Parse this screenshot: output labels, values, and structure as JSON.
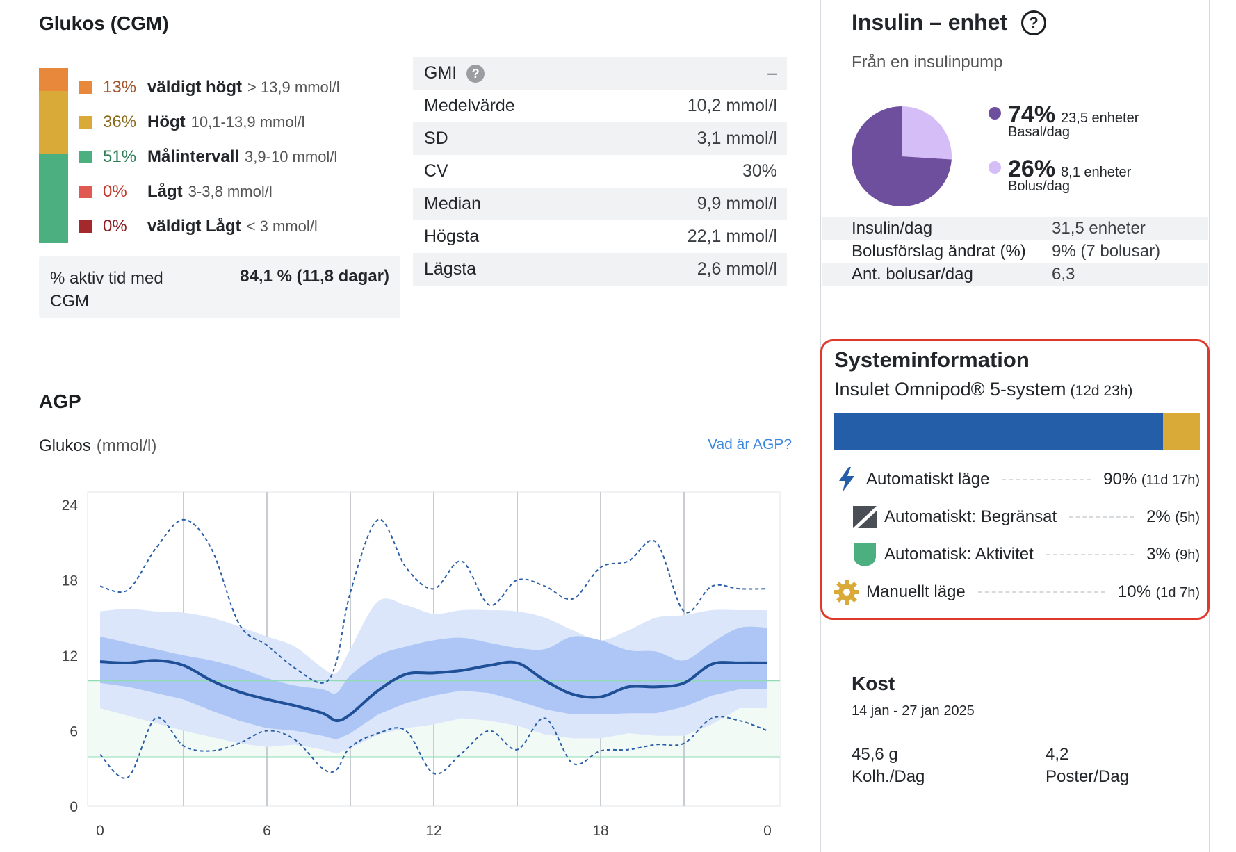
{
  "glucose": {
    "title": "Glukos (CGM)",
    "tir": [
      {
        "pct": "13%",
        "label": "väldigt högt",
        "range": "> 13,9 mmol/l",
        "color": "#e8883a",
        "text_color": "#a0552a",
        "share": 13
      },
      {
        "pct": "36%",
        "label": "Högt",
        "range": "10,1-13,9 mmol/l",
        "color": "#d9aa37",
        "text_color": "#8a6a1a",
        "share": 36
      },
      {
        "pct": "51%",
        "label": "Målintervall",
        "range": "3,9-10 mmol/l",
        "color": "#4caf7f",
        "text_color": "#2e7d55",
        "share": 51
      },
      {
        "pct": "0%",
        "label": "Lågt",
        "range": "3-3,8 mmol/l",
        "color": "#e05a52",
        "text_color": "#c0392b",
        "share": 0
      },
      {
        "pct": "0%",
        "label": "väldigt Lågt",
        "range": "< 3 mmol/l",
        "color": "#a3292c",
        "text_color": "#8b1c1f",
        "share": 0
      }
    ],
    "cgm_active_label": "% aktiv tid med CGM",
    "cgm_active_value": "84,1 % (11,8 dagar)",
    "stats": [
      {
        "label": "GMI",
        "value": "–",
        "help": "?"
      },
      {
        "label": "Medelvärde",
        "value": "10,2 mmol/l"
      },
      {
        "label": "SD",
        "value": "3,1 mmol/l"
      },
      {
        "label": "CV",
        "value": "30%"
      },
      {
        "label": "Median",
        "value": "9,9 mmol/l"
      },
      {
        "label": "Högsta",
        "value": "22,1 mmol/l"
      },
      {
        "label": "Lägsta",
        "value": "2,6 mmol/l"
      }
    ]
  },
  "agp": {
    "title": "AGP",
    "ylabel": "Glukos",
    "unit": "(mmol/l)",
    "help_link": "Vad är AGP?"
  },
  "chart_data": {
    "type": "area",
    "ylabel": "Glukos (mmol/l)",
    "x_ticks": [
      "0",
      "6",
      "12",
      "18",
      "0"
    ],
    "y_ticks": [
      "0",
      "6",
      "12",
      "18",
      "24"
    ],
    "ylim": [
      0,
      25
    ],
    "xlim": [
      0,
      24
    ],
    "target_range": [
      3.9,
      10
    ],
    "hours": [
      0,
      1,
      2,
      3,
      4,
      5,
      6,
      7,
      8,
      8.5,
      9,
      10,
      11,
      12,
      13,
      14,
      15,
      16,
      17,
      18,
      19,
      20,
      21,
      22,
      23,
      24
    ],
    "series": [
      {
        "name": "p95",
        "style": "dashed",
        "values": [
          17.5,
          17.2,
          20.5,
          22.8,
          20.5,
          14.5,
          12.8,
          11.0,
          9.8,
          11.5,
          17.0,
          22.8,
          19.0,
          17.3,
          19.5,
          16.0,
          18.0,
          17.5,
          16.5,
          19.0,
          19.5,
          21.0,
          15.5,
          17.5,
          17.3,
          17.3
        ],
        "values_end": [
          17.0
        ]
      },
      {
        "name": "p90",
        "style": "band-outer-top",
        "values": [
          15.5,
          15.7,
          15.5,
          15.4,
          15.0,
          14.3,
          13.5,
          12.7,
          11.0,
          10.6,
          12.5,
          16.3,
          16.0,
          15.3,
          15.6,
          15.6,
          15.5,
          15.0,
          14.0,
          13.2,
          14.0,
          15.0,
          15.2,
          15.6,
          15.6,
          15.6
        ]
      },
      {
        "name": "p75",
        "style": "band-inner-top",
        "values": [
          13.5,
          13.0,
          12.5,
          12.0,
          11.6,
          11.0,
          10.2,
          9.6,
          9.3,
          9.0,
          10.4,
          12.0,
          12.7,
          13.2,
          13.4,
          13.0,
          12.6,
          12.5,
          13.5,
          13.2,
          12.4,
          12.3,
          11.6,
          13.0,
          14.2,
          14.2
        ]
      },
      {
        "name": "Median",
        "style": "solid",
        "values": [
          11.5,
          11.4,
          11.6,
          11.2,
          10.0,
          9.1,
          8.5,
          8.0,
          7.4,
          6.8,
          7.3,
          9.2,
          10.5,
          10.6,
          10.8,
          11.2,
          11.4,
          10.0,
          8.9,
          8.7,
          9.5,
          9.5,
          9.8,
          11.3,
          11.4,
          11.4
        ]
      },
      {
        "name": "p25",
        "style": "band-inner-bottom",
        "values": [
          9.8,
          9.5,
          9.0,
          8.5,
          7.6,
          6.8,
          6.2,
          6.0,
          5.6,
          5.3,
          5.8,
          7.3,
          8.2,
          8.8,
          9.2,
          9.0,
          8.4,
          7.7,
          7.3,
          7.3,
          7.4,
          7.4,
          7.9,
          8.8,
          9.3,
          9.3
        ]
      },
      {
        "name": "p10",
        "style": "band-outer-bottom",
        "values": [
          7.8,
          7.2,
          6.6,
          6.0,
          5.5,
          5.0,
          4.7,
          4.9,
          4.5,
          4.2,
          4.6,
          5.7,
          6.2,
          6.5,
          7.0,
          6.8,
          6.4,
          5.7,
          5.4,
          5.4,
          5.8,
          5.6,
          5.6,
          6.5,
          7.8,
          7.8
        ]
      },
      {
        "name": "p5",
        "style": "dashed",
        "values": [
          4.1,
          2.3,
          7.0,
          4.8,
          4.4,
          5.0,
          6.0,
          5.3,
          3.0,
          2.9,
          4.7,
          5.8,
          6.0,
          2.6,
          4.2,
          6.0,
          4.5,
          7.0,
          3.4,
          4.4,
          4.5,
          4.9,
          5.0,
          7.0,
          6.8,
          6.0
        ]
      }
    ]
  },
  "insulin": {
    "title": "Insulin – enhet",
    "help": "?",
    "subtitle": "Från en insulinpump",
    "basal": {
      "pct": "74%",
      "units": "23,5 enheter",
      "label": "Basal/dag",
      "share": 74,
      "color": "#6e4f9e"
    },
    "bolus": {
      "pct": "26%",
      "units": "8,1 enheter",
      "label": "Bolus/dag",
      "share": 26,
      "color": "#d5bdf7"
    },
    "rows": [
      {
        "label": "Insulin/dag",
        "value": "31,5 enheter"
      },
      {
        "label": "Bolusförslag ändrat (%)",
        "value": "9% (7 bolusar)"
      },
      {
        "label": "Ant. bolusar/dag",
        "value": "6,3"
      }
    ]
  },
  "system": {
    "title": "Systeminformation",
    "device": "Insulet Omnipod® 5-system",
    "duration": "(12d 23h)",
    "bar": [
      {
        "share": 90,
        "color": "#245ea8"
      },
      {
        "share": 10,
        "color": "#d9aa37"
      }
    ],
    "modes": [
      {
        "icon": "lightning-icon",
        "label": "Automatiskt läge",
        "pct": "90%",
        "time": "(11d 17h)",
        "indent": false
      },
      {
        "icon": "limited-icon",
        "label": "Automatiskt: Begränsat",
        "pct": "2%",
        "time": "(5h)",
        "indent": true
      },
      {
        "icon": "shield-icon",
        "label": "Automatisk: Aktivitet",
        "pct": "3%",
        "time": "(9h)",
        "indent": true
      },
      {
        "icon": "gear-icon",
        "label": "Manuellt läge",
        "pct": "10%",
        "time": "(1d 7h)",
        "indent": false
      }
    ]
  },
  "diet": {
    "title": "Kost",
    "date": "14 jan - 27 jan 2025",
    "carbs_value": "45,6 g",
    "carbs_label": "Kolh./Dag",
    "entries_value": "4,2",
    "entries_label": "Poster/Dag"
  }
}
